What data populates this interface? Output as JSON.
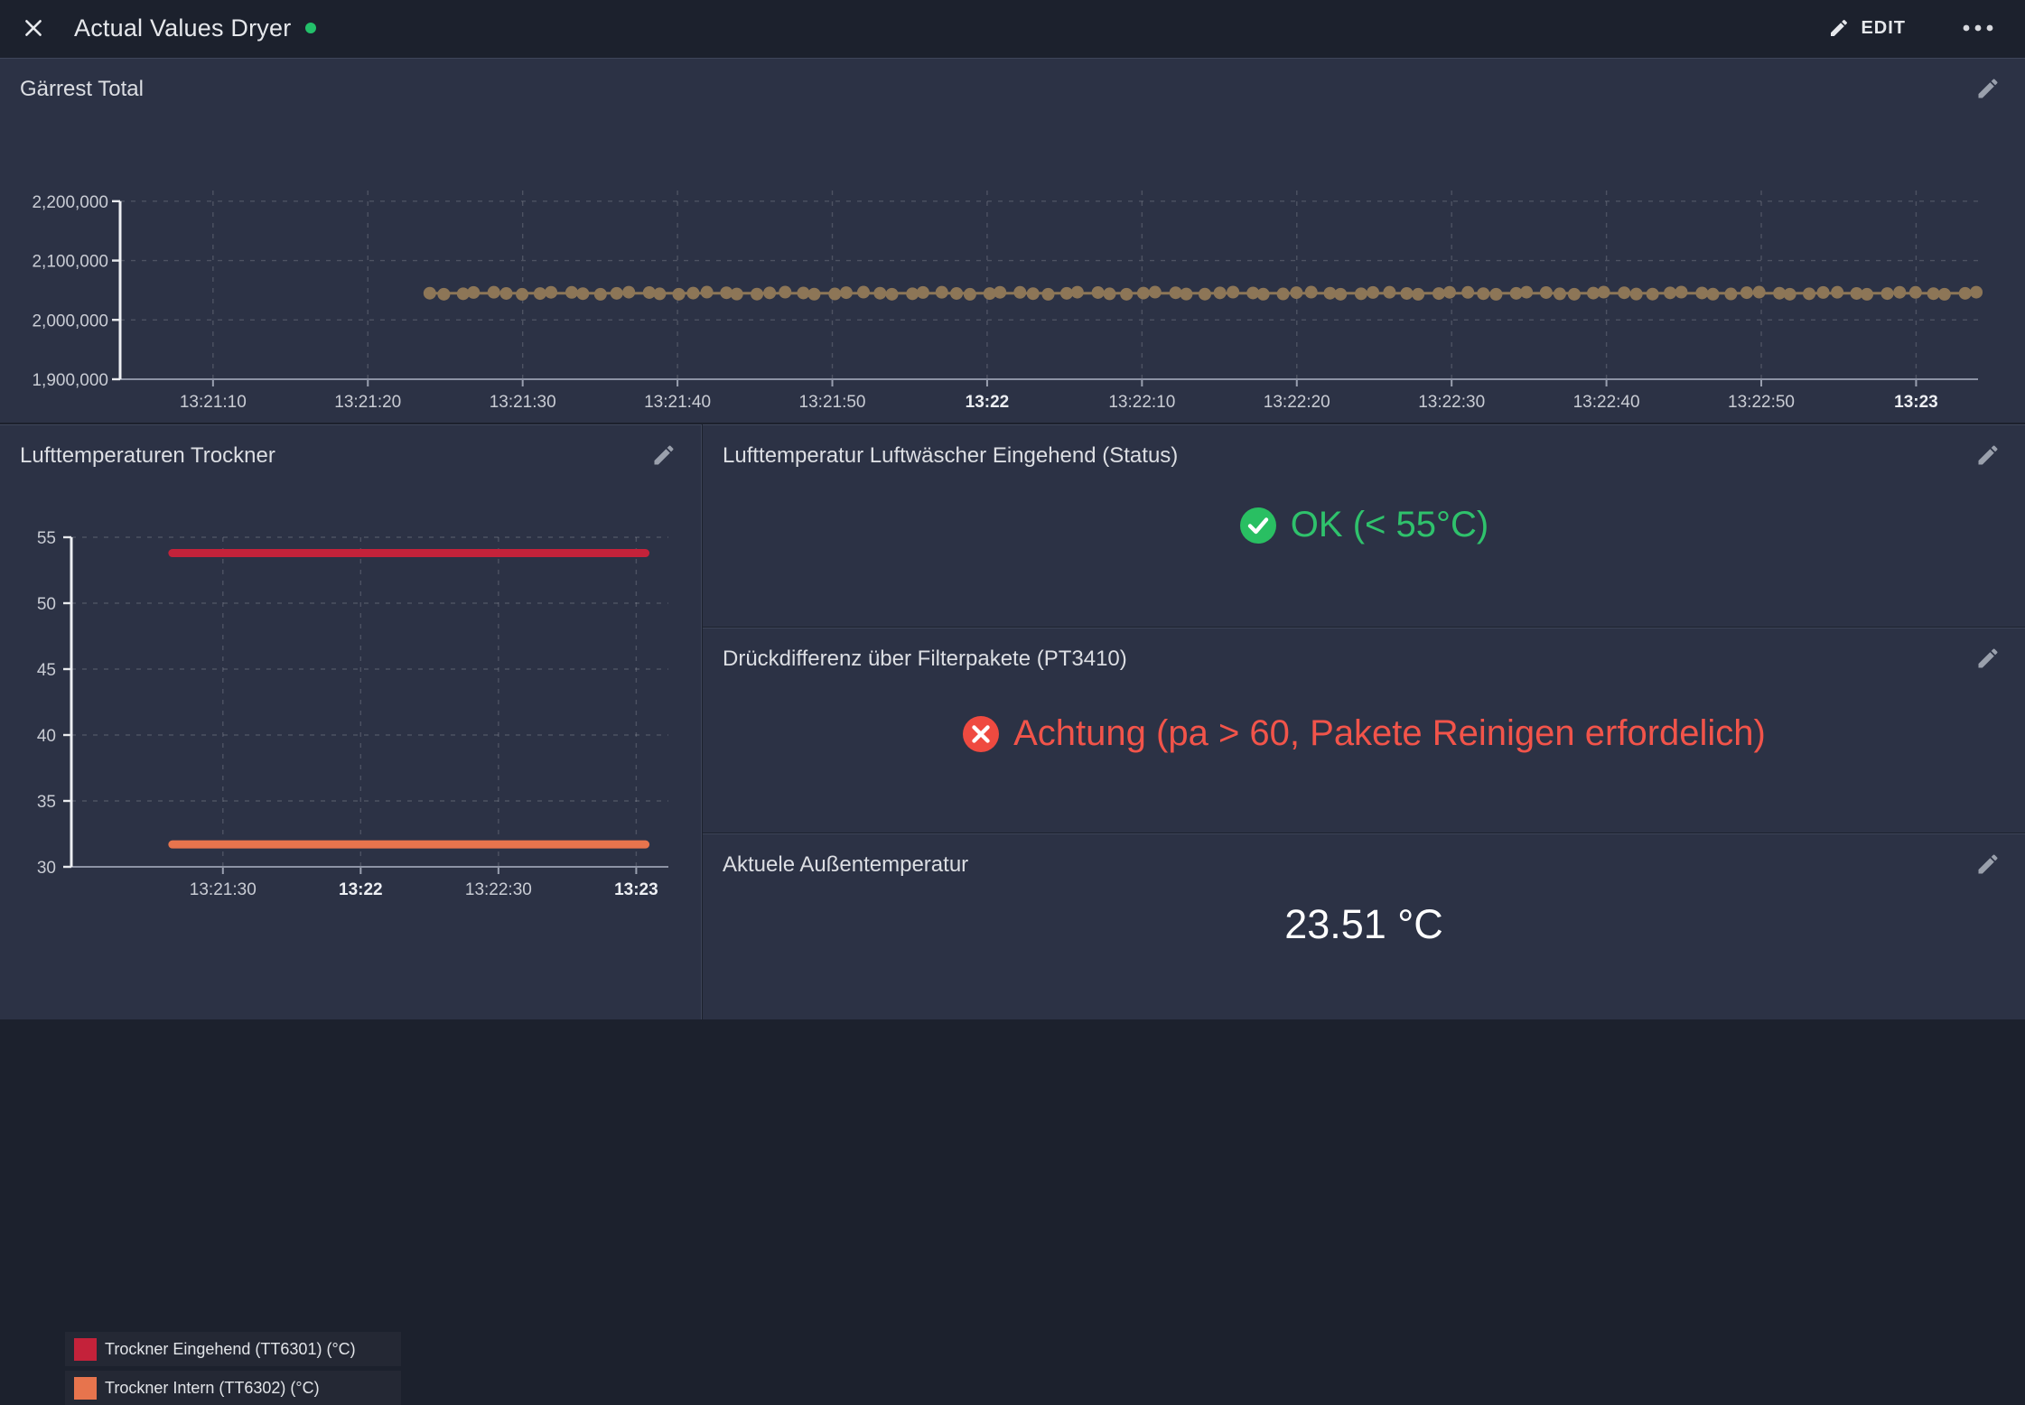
{
  "header": {
    "title": "Actual Values Dryer",
    "edit_label": "EDIT",
    "status_dot_color": "#23c06a"
  },
  "icons": [
    "close-icon",
    "pencil-icon",
    "kebab-menu-icon",
    "check-circle-icon",
    "x-circle-icon",
    "status-dot"
  ],
  "colors": {
    "panel_bg": "#2c3245",
    "header_bg": "#1c212d",
    "ok_green": "#2fc26c",
    "alert_red": "#f2544a",
    "series_tan": "#8d7657",
    "series_red": "#c4223a",
    "series_orange": "#e7744d"
  },
  "panels": {
    "gaerrest": {
      "title": "Gärrest Total"
    },
    "lufttemp": {
      "title": "Lufttemperaturen Trockner"
    },
    "status_luftwaescher": {
      "title": "Lufttemperatur Luftwäscher Eingehend (Status)",
      "status_text": "OK (< 55°C)",
      "status_color": "#2fc26c",
      "state": "ok"
    },
    "druckdifferenz": {
      "title": "Drückdifferenz über Filterpakete (PT3410)",
      "status_text": "Achtung (pa > 60, Pakete Reinigen erfordelich)",
      "status_color": "#f2544a",
      "state": "alert"
    },
    "aussentemperatur": {
      "title": "Aktuele Außentemperatur",
      "value": "23.51 °C"
    }
  },
  "chart_data": [
    {
      "id": "gaerrest",
      "type": "scatter",
      "title": "Gärrest Total",
      "xlabel": "",
      "ylabel": "",
      "x_start": "13:21:04",
      "x_end": "13:23:04",
      "ylim": [
        1900000,
        2218000
      ],
      "grid": "dashed",
      "legend": "none",
      "y_ticks": [
        {
          "value": 1900000,
          "label": "1,900,000"
        },
        {
          "value": 2000000,
          "label": "2,000,000"
        },
        {
          "value": 2100000,
          "label": "2,100,000"
        },
        {
          "value": 2200000,
          "label": "2,200,000"
        }
      ],
      "x_ticks": [
        {
          "label": "13:21:10",
          "time": "13:21:10",
          "bold": false
        },
        {
          "label": "13:21:20",
          "time": "13:21:20",
          "bold": false
        },
        {
          "label": "13:21:30",
          "time": "13:21:30",
          "bold": false
        },
        {
          "label": "13:21:40",
          "time": "13:21:40",
          "bold": false
        },
        {
          "label": "13:21:50",
          "time": "13:21:50",
          "bold": false
        },
        {
          "label": "13:22",
          "time": "13:22:00",
          "bold": true
        },
        {
          "label": "13:22:10",
          "time": "13:22:10",
          "bold": false
        },
        {
          "label": "13:22:20",
          "time": "13:22:20",
          "bold": false
        },
        {
          "label": "13:22:30",
          "time": "13:22:30",
          "bold": false
        },
        {
          "label": "13:22:40",
          "time": "13:22:40",
          "bold": false
        },
        {
          "label": "13:22:50",
          "time": "13:22:50",
          "bold": false
        },
        {
          "label": "13:23",
          "time": "13:23:00",
          "bold": true
        }
      ],
      "series": [
        {
          "name": "Gärrest Total",
          "color": "#8d7657",
          "style": "points",
          "value": 2045000,
          "from": "13:21:24",
          "to": "13:23:04",
          "point_interval_s": 1,
          "line_width": 3
        }
      ]
    },
    {
      "id": "lufttemp",
      "type": "line",
      "title": "Lufttemperaturen Trockner",
      "xlabel": "",
      "ylabel": "",
      "x_start": "13:20:57",
      "x_end": "13:23:07",
      "ylim": [
        30,
        55
      ],
      "grid": "dashed",
      "legend": "bottom",
      "y_ticks": [
        {
          "value": 30,
          "label": "30"
        },
        {
          "value": 35,
          "label": "35"
        },
        {
          "value": 40,
          "label": "40"
        },
        {
          "value": 45,
          "label": "45"
        },
        {
          "value": 50,
          "label": "50"
        },
        {
          "value": 55,
          "label": "55"
        }
      ],
      "x_ticks": [
        {
          "label": "13:21:30",
          "time": "13:21:30",
          "bold": false
        },
        {
          "label": "13:22",
          "time": "13:22:00",
          "bold": true
        },
        {
          "label": "13:22:30",
          "time": "13:22:30",
          "bold": false
        },
        {
          "label": "13:23",
          "time": "13:23:00",
          "bold": true
        }
      ],
      "series": [
        {
          "name": "Trockner Eingehend (TT6301) (°C)",
          "color": "#c4223a",
          "style": "line",
          "value": 53.8,
          "from": "13:21:19",
          "to": "13:23:02",
          "line_width": 9
        },
        {
          "name": "Trockner Intern (TT6302) (°C)",
          "color": "#e7744d",
          "style": "line",
          "value": 31.7,
          "from": "13:21:19",
          "to": "13:23:02",
          "line_width": 9
        }
      ]
    }
  ]
}
